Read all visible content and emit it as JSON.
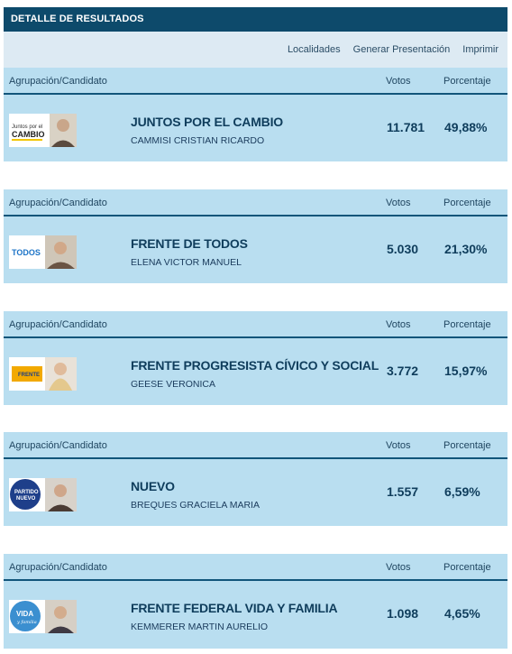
{
  "title": "DETALLE DE RESULTADOS",
  "toolbar": {
    "localidades": "Localidades",
    "presentacion": "Generar Presentación",
    "imprimir": "Imprimir"
  },
  "columns": {
    "group": "Agrupación/Candidato",
    "votes": "Votos",
    "percent": "Porcentaje"
  },
  "results": [
    {
      "party": "JUNTOS POR EL CAMBIO",
      "candidate": "CAMMISI CRISTIAN RICARDO",
      "votes": "11.781",
      "percent": "49,88%",
      "logo_text_1": "Juntos por el",
      "logo_text_2": "CAMBIO"
    },
    {
      "party": "FRENTE DE TODOS",
      "candidate": "ELENA VICTOR MANUEL",
      "votes": "5.030",
      "percent": "21,30%",
      "logo_text_1": "TODOS"
    },
    {
      "party": "FRENTE PROGRESISTA CÍVICO Y SOCIAL",
      "candidate": "GEESE VERONICA",
      "votes": "3.772",
      "percent": "15,97%",
      "logo_text_1": "FRENTE"
    },
    {
      "party": "NUEVO",
      "candidate": "BREQUES GRACIELA MARIA",
      "votes": "1.557",
      "percent": "6,59%",
      "logo_text_1": "PARTIDO",
      "logo_text_2": "NUEVO"
    },
    {
      "party": "FRENTE FEDERAL VIDA Y FAMILIA",
      "candidate": "KEMMERER MARTIN AURELIO",
      "votes": "1.098",
      "percent": "4,65%",
      "logo_text_1": "VIDA",
      "logo_text_2": "y familia"
    }
  ]
}
